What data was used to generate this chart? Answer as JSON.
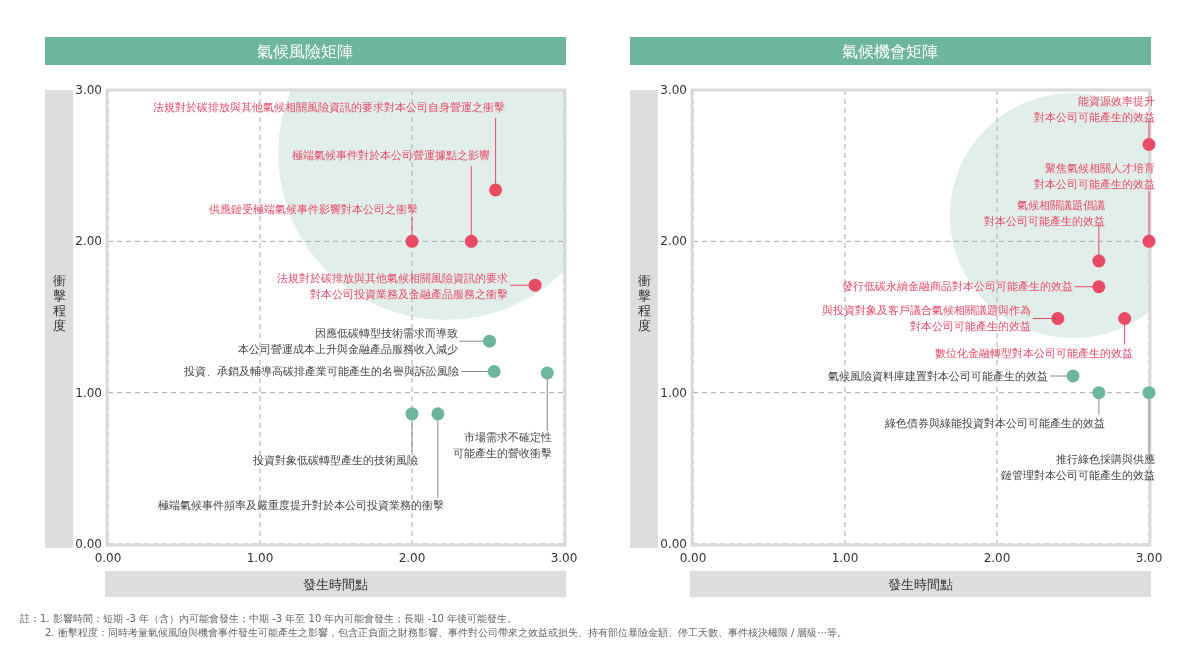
{
  "chart_data": [
    {
      "type": "scatter",
      "title": "氣候風險矩陣",
      "xlabel": "發生時間點",
      "ylabel": "衝擊程度",
      "xlim": [
        0,
        3
      ],
      "ylim": [
        0,
        3
      ],
      "xticks": [
        {
          "value": 0,
          "label": "0.00"
        },
        {
          "value": 1,
          "label": "1.00"
        },
        {
          "value": 2,
          "label": "2.00"
        },
        {
          "value": 3,
          "label": "3.00"
        }
      ],
      "yticks": [
        {
          "value": 0,
          "label": "0.00"
        },
        {
          "value": 1,
          "label": "1.00"
        },
        {
          "value": 2,
          "label": "2.00"
        },
        {
          "value": 3,
          "label": "3.00"
        }
      ],
      "grid": true,
      "marker": "circle",
      "series": [
        {
          "color": "#e84a68",
          "x": [
            2.55,
            2.39,
            2.0,
            2.81
          ],
          "values": [
            2.34,
            2.0,
            2.0,
            1.71
          ]
        },
        {
          "color": "#6db59f",
          "x": [
            2.51,
            2.54,
            2.89,
            2.0,
            2.17
          ],
          "values": [
            1.34,
            1.14,
            1.13,
            0.86,
            0.86
          ]
        }
      ],
      "annotations": [
        {
          "text": "法規對於碳排放與其他氣候相關風險資訊的要求對本公司自身營運之衝擊",
          "x": 2.55,
          "y": 2.34
        },
        {
          "text": "極端氣候事件對於本公司營運據點之影響",
          "x": 2.39,
          "y": 2.0
        },
        {
          "text": "供應鏈受極端氣候事件影響對本公司之衝擊",
          "x": 2.0,
          "y": 2.0
        },
        {
          "text": "法規對於碳排放與其他氣候相關風險資訊的要求對本公司投資業務及金融產品服務之衝擊",
          "x": 2.81,
          "y": 1.71
        },
        {
          "text": "因應低碳轉型技術需求而導致本公司營運成本上升與金融產品服務收入減少",
          "x": 2.51,
          "y": 1.34
        },
        {
          "text": "投資、承銷及輔導高碳排產業可能產生的名譽與訴訟風險",
          "x": 2.54,
          "y": 1.14
        },
        {
          "text": "市場需求不確定性可能產生的營收衝擊",
          "x": 2.89,
          "y": 1.13
        },
        {
          "text": "投資對象低碳轉型產生的技術風險",
          "x": 2.0,
          "y": 0.86
        },
        {
          "text": "極端氣候事件頻率及嚴重度提升對於本公司投資業務的衝擊",
          "x": 2.17,
          "y": 0.86
        },
        "註：1. 影響時間：短期 -3 年（含）內可能會發生；中期 -3 年至 10 年內可能會發生；長期 -10 年後可能發生。",
        "2. 衝擊程度：同時考量氣候風險與機會事件發生可能產生之影響，包含正負面之財務影響、事件對公司帶來之效益或損失、持有部位暴險金額、停工天數、事件核決權限 / 層級⋯等。"
      ]
    },
    {
      "type": "scatter",
      "title": "氣候機會矩陣",
      "xlabel": "發生時間點",
      "ylabel": "衝擊程度",
      "xlim": [
        0,
        3
      ],
      "ylim": [
        0,
        3
      ],
      "xticks": [
        {
          "value": 0,
          "label": "0.00"
        },
        {
          "value": 1,
          "label": "1.00"
        },
        {
          "value": 2,
          "label": "2.00"
        },
        {
          "value": 3,
          "label": "3.00"
        }
      ],
      "yticks": [
        {
          "value": 0,
          "label": "0.00"
        },
        {
          "value": 1,
          "label": "1.00"
        },
        {
          "value": 2,
          "label": "2.00"
        },
        {
          "value": 3,
          "label": "3.00"
        }
      ],
      "grid": true,
      "marker": "circle",
      "series": [
        {
          "color": "#e84a68",
          "x": [
            3.0,
            3.0,
            2.67,
            2.67,
            2.4,
            2.84
          ],
          "values": [
            2.64,
            2.0,
            1.87,
            1.7,
            1.49,
            1.49
          ]
        },
        {
          "color": "#6db59f",
          "x": [
            2.5,
            2.67,
            3.0
          ],
          "values": [
            1.11,
            1.0,
            1.0
          ]
        }
      ],
      "annotations": [
        {
          "text": "能資源效率提升對本公司可能產生的效益",
          "x": 3.0,
          "y": 2.64
        },
        {
          "text": "聚焦氣候相關人才培育對本公司可能產生的效益",
          "x": 3.0,
          "y": 2.0
        },
        {
          "text": "氣候相關議題倡議對本公司可能產生的效益",
          "x": 2.67,
          "y": 1.87
        },
        {
          "text": "發行低碳永續金融商品對本公司可能產生的效益",
          "x": 2.67,
          "y": 1.7
        },
        {
          "text": "與投資對象及客戶議合氣候相關議題與作為對本公司可能產生的效益",
          "x": 2.4,
          "y": 1.49
        },
        {
          "text": "數位化金融轉型對本公司可能產生的效益",
          "x": 2.84,
          "y": 1.49
        },
        {
          "text": "氣候風險資料庫建置對本公司可能產生的效益",
          "x": 2.5,
          "y": 1.11
        },
        {
          "text": "綠色債券與綠能投資對本公司可能產生的效益",
          "x": 2.67,
          "y": 1.0
        },
        {
          "text": "推行綠色採購與供應鏈管理對本公司可能產生的效益",
          "x": 3.0,
          "y": 1.0
        }
      ]
    }
  ]
}
